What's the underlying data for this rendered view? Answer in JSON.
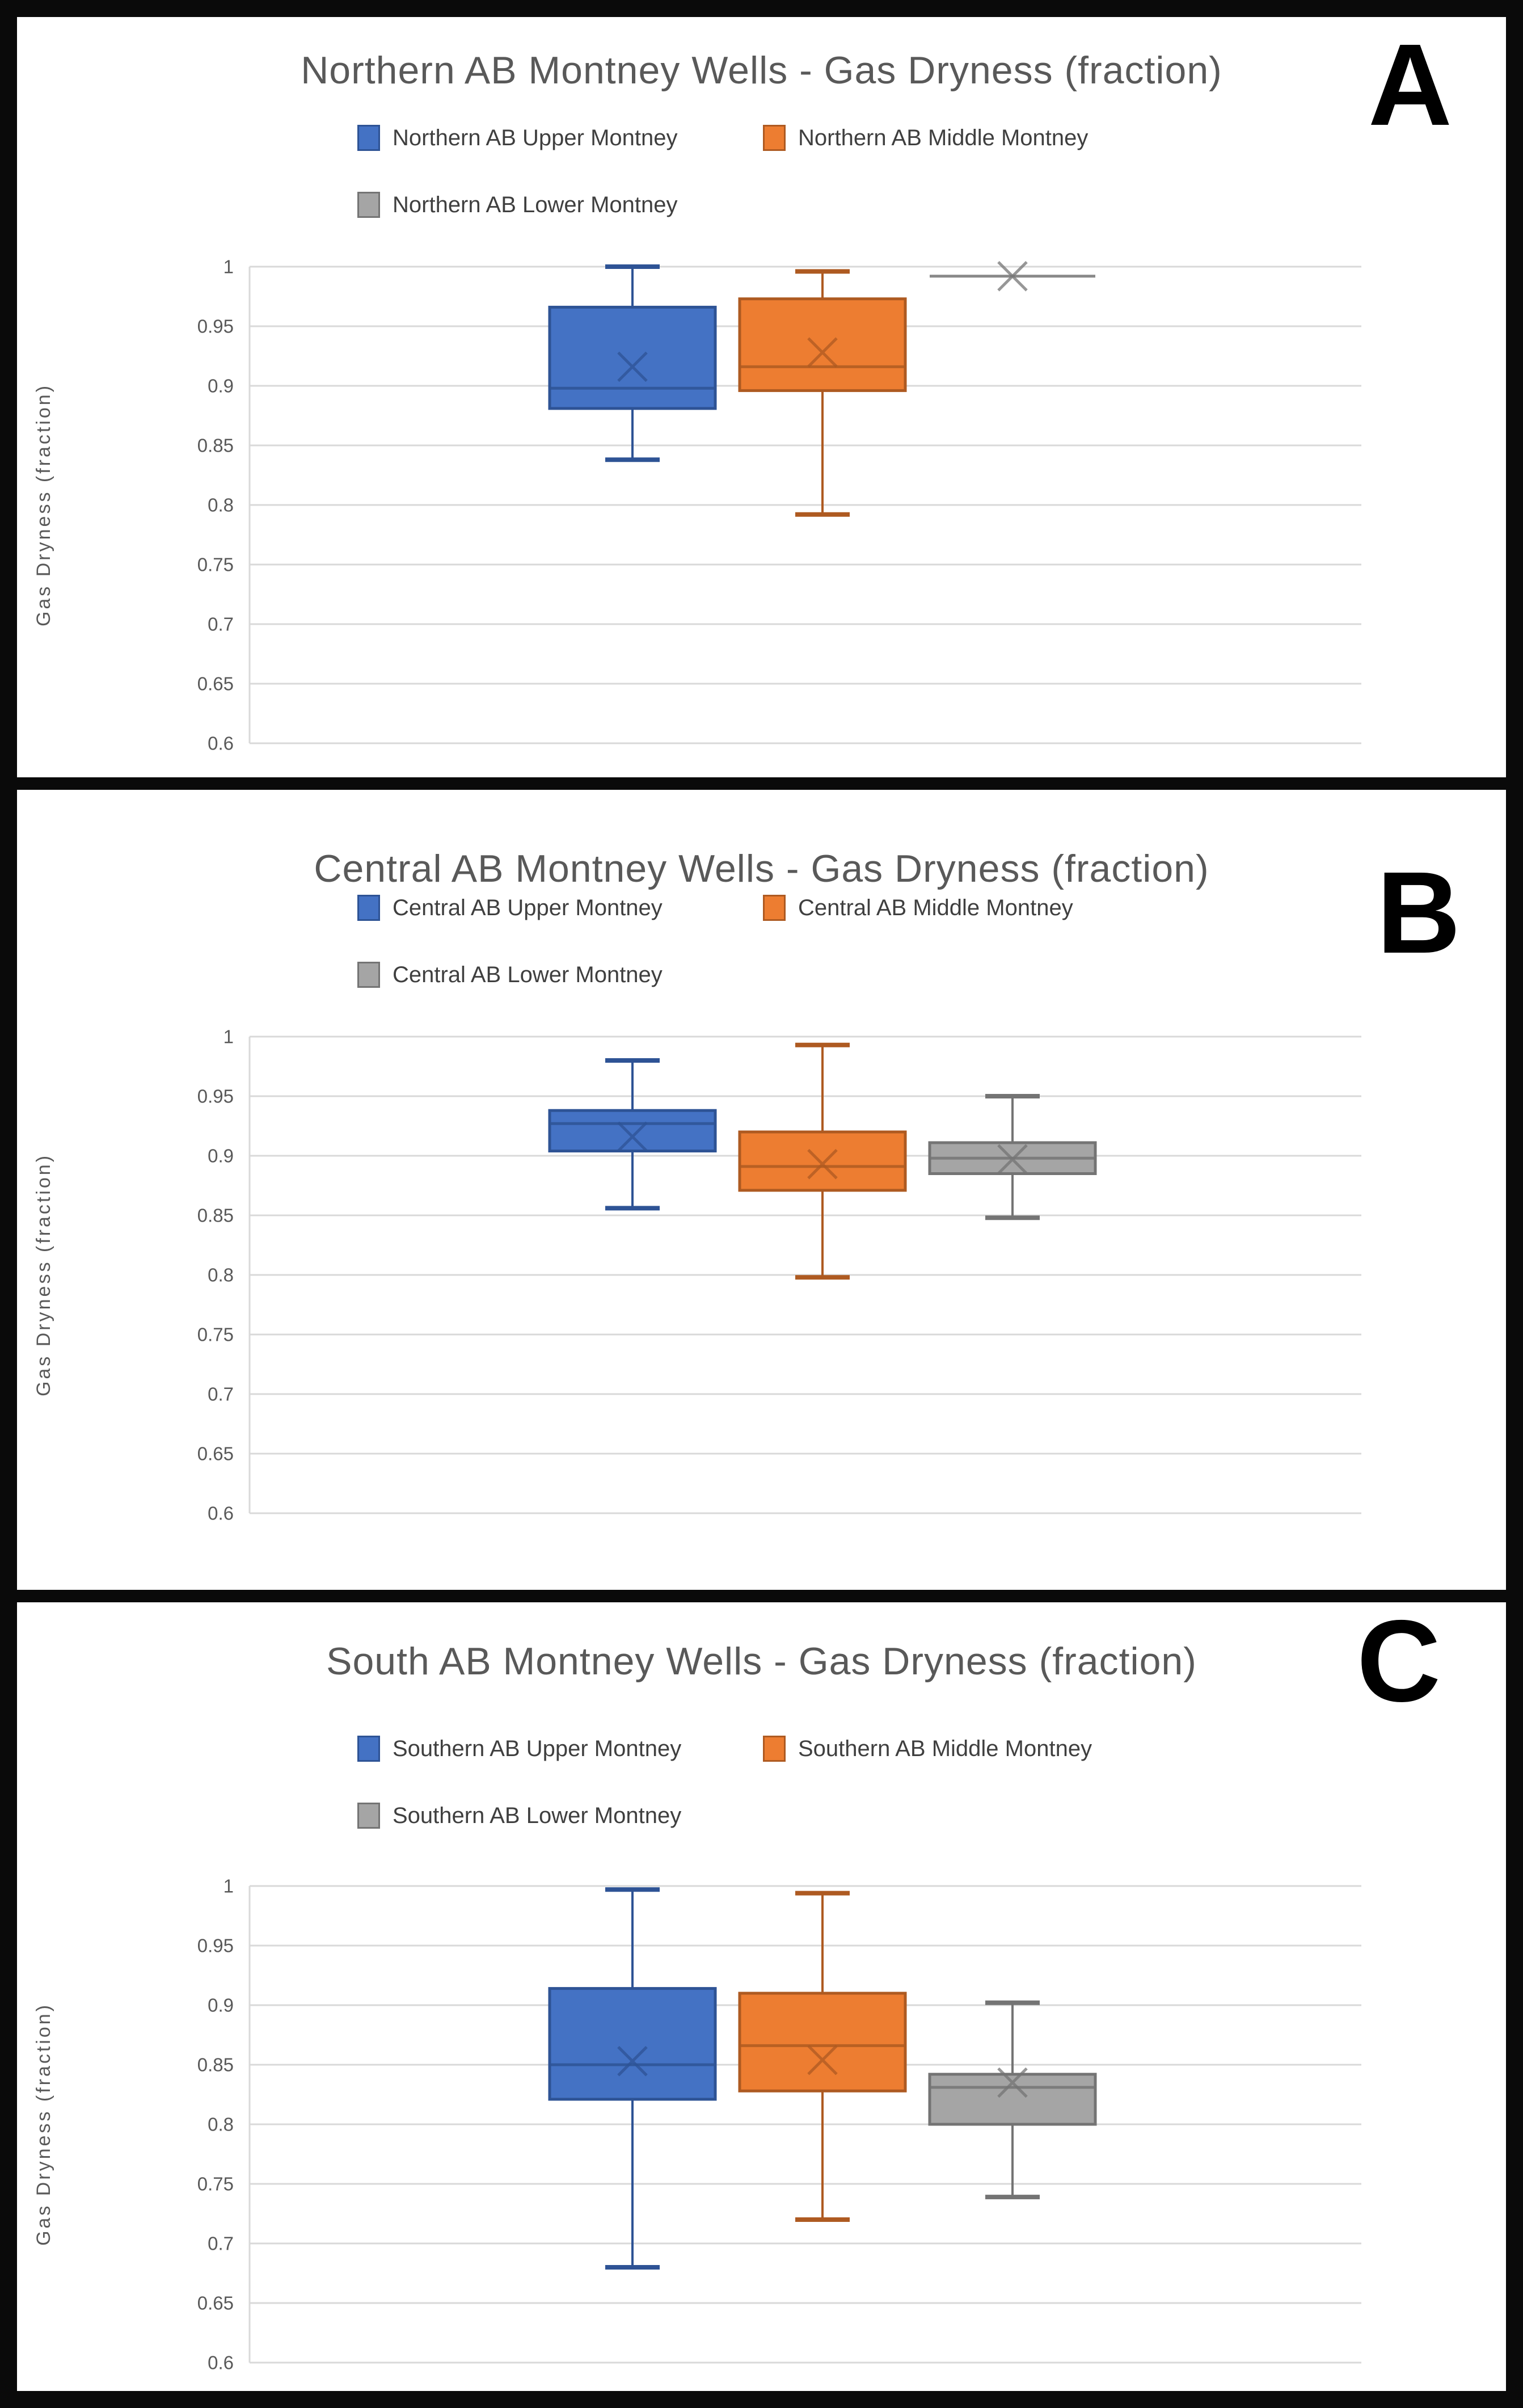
{
  "page": {
    "background_color": "#000000",
    "panel_background": "#ffffff"
  },
  "style_colors": {
    "title_gray": "#595959",
    "tick_gray": "#595959",
    "gridline": "#D9D9D9",
    "legend_text": "#3f3f3f"
  },
  "chart_data": [
    {
      "type": "boxplot",
      "panel_label": "A",
      "title": "Northern AB Montney Wells - Gas Dryness (fraction)",
      "ylabel": "Gas Dryness (fraction)",
      "ylim": [
        0.6,
        1.0
      ],
      "ytick_labels": [
        "1",
        "0.95",
        "0.9",
        "0.85",
        "0.8",
        "0.75",
        "0.7",
        "0.65",
        "0.6"
      ],
      "grid": true,
      "legend_position": "top",
      "series": [
        {
          "name": "Northern AB Upper Montney",
          "fill": "#4472C4",
          "stroke": "#2E5395",
          "min": 0.838,
          "q1": 0.881,
          "median": 0.898,
          "q3": 0.966,
          "max": 1.0,
          "mean": 0.916
        },
        {
          "name": "Northern AB Middle Montney",
          "fill": "#ED7D31",
          "stroke": "#AE5A21",
          "min": 0.792,
          "q1": 0.896,
          "median": 0.916,
          "q3": 0.973,
          "max": 0.996,
          "mean": 0.928
        },
        {
          "name": "Northern AB Lower Montney",
          "fill": "#A5A5A5",
          "stroke": "#747474",
          "min": 0.992,
          "q1": 0.992,
          "median": 0.992,
          "q3": 0.992,
          "max": 0.992,
          "mean": 0.992
        }
      ]
    },
    {
      "type": "boxplot",
      "panel_label": "B",
      "title": "Central AB Montney Wells - Gas Dryness (fraction)",
      "ylabel": "Gas Dryness (fraction)",
      "ylim": [
        0.6,
        1.0
      ],
      "ytick_labels": [
        "1",
        "0.95",
        "0.9",
        "0.85",
        "0.8",
        "0.75",
        "0.7",
        "0.65",
        "0.6"
      ],
      "grid": true,
      "legend_position": "top",
      "series": [
        {
          "name": "Central AB Upper Montney",
          "fill": "#4472C4",
          "stroke": "#2E5395",
          "min": 0.856,
          "q1": 0.904,
          "median": 0.927,
          "q3": 0.938,
          "max": 0.98,
          "mean": 0.916
        },
        {
          "name": "Central AB Middle Montney",
          "fill": "#ED7D31",
          "stroke": "#AE5A21",
          "min": 0.798,
          "q1": 0.871,
          "median": 0.891,
          "q3": 0.92,
          "max": 0.993,
          "mean": 0.893
        },
        {
          "name": "Central AB Lower Montney",
          "fill": "#A5A5A5",
          "stroke": "#747474",
          "min": 0.848,
          "q1": 0.885,
          "median": 0.898,
          "q3": 0.911,
          "max": 0.95,
          "mean": 0.897
        }
      ]
    },
    {
      "type": "boxplot",
      "panel_label": "C",
      "title": "South AB Montney Wells - Gas Dryness (fraction)",
      "ylabel": "Gas Dryness (fraction)",
      "ylim": [
        0.6,
        1.0
      ],
      "ytick_labels": [
        "1",
        "0.95",
        "0.9",
        "0.85",
        "0.8",
        "0.75",
        "0.7",
        "0.65",
        "0.6"
      ],
      "grid": true,
      "legend_position": "top",
      "series": [
        {
          "name": "Southern AB Upper Montney",
          "fill": "#4472C4",
          "stroke": "#2E5395",
          "min": 0.68,
          "q1": 0.821,
          "median": 0.85,
          "q3": 0.914,
          "max": 0.997,
          "mean": 0.853
        },
        {
          "name": "Southern AB Middle Montney",
          "fill": "#ED7D31",
          "stroke": "#AE5A21",
          "min": 0.72,
          "q1": 0.828,
          "median": 0.866,
          "q3": 0.91,
          "max": 0.994,
          "mean": 0.854
        },
        {
          "name": "Southern AB Lower Montney",
          "fill": "#A5A5A5",
          "stroke": "#747474",
          "min": 0.739,
          "q1": 0.8,
          "median": 0.831,
          "q3": 0.842,
          "max": 0.902,
          "mean": 0.835
        }
      ]
    }
  ]
}
